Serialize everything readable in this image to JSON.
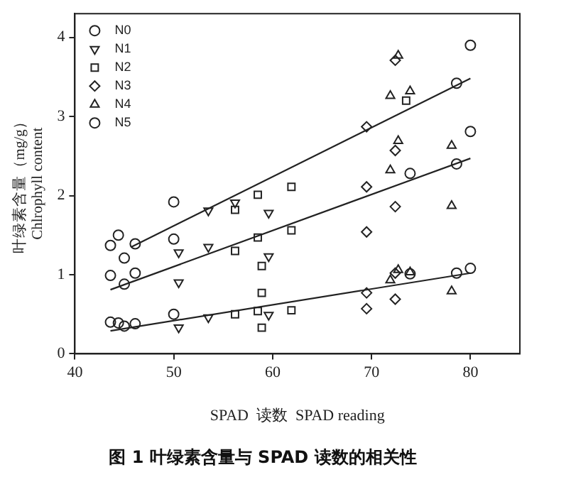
{
  "chart_data": {
    "type": "scatter",
    "title": "图 1 叶绿素含量与 SPAD 读数的相关性",
    "xlabel": "SPAD  读数  SPAD reading",
    "ylabel": "叶绿素含量（mg/g）\nChlrophyll content",
    "xlim": [
      40,
      85
    ],
    "ylim": [
      0,
      4.3
    ],
    "xticks": [
      40,
      50,
      60,
      70,
      80
    ],
    "yticks": [
      0,
      1,
      2,
      3,
      4
    ],
    "grid": false,
    "legend": "top left",
    "series": [
      {
        "name": "N0",
        "color": "#222222",
        "marker": "circle",
        "x": [
          43.6,
          44.4,
          43.6,
          46.1,
          46.1,
          45.0,
          45.0,
          50.0,
          50.0,
          43.6,
          44.4,
          46.1,
          45.0,
          50.0
        ],
        "values": [
          1.37,
          1.5,
          0.99,
          1.39,
          1.02,
          0.88,
          1.21,
          1.92,
          1.45,
          0.4,
          0.39,
          0.38,
          0.35,
          0.5
        ]
      },
      {
        "name": "N1",
        "color": "#222222",
        "marker": "triangle-down",
        "x": [
          53.5,
          50.5,
          50.5,
          53.5,
          59.6,
          59.6,
          50.5,
          53.5,
          59.6,
          56.2
        ],
        "values": [
          1.81,
          1.28,
          0.9,
          1.35,
          1.78,
          1.23,
          0.33,
          0.46,
          0.49,
          1.91
        ]
      },
      {
        "name": "N2",
        "color": "#222222",
        "marker": "square",
        "x": [
          56.2,
          58.5,
          61.9,
          56.2,
          58.5,
          58.9,
          61.9,
          58.9,
          58.9,
          56.2,
          58.5,
          61.9,
          73.5
        ],
        "values": [
          1.82,
          2.01,
          2.11,
          1.3,
          1.47,
          1.11,
          1.56,
          0.77,
          0.33,
          0.5,
          0.54,
          0.55,
          3.2
        ]
      },
      {
        "name": "N3",
        "color": "#222222",
        "marker": "diamond",
        "x": [
          72.4,
          69.5,
          72.4,
          69.5,
          72.4,
          69.5,
          69.5,
          69.5,
          72.4,
          72.4
        ],
        "values": [
          3.71,
          2.87,
          2.57,
          2.11,
          1.86,
          1.54,
          0.77,
          0.57,
          0.69,
          1.02
        ]
      },
      {
        "name": "N4",
        "color": "#222222",
        "marker": "triangle",
        "x": [
          72.7,
          71.9,
          73.9,
          72.7,
          71.9,
          78.1,
          78.1,
          71.9,
          73.9,
          78.1,
          72.7
        ],
        "values": [
          3.77,
          3.26,
          3.32,
          2.69,
          2.32,
          2.63,
          1.87,
          0.93,
          1.03,
          0.79,
          1.06
        ]
      },
      {
        "name": "N5",
        "color": "#222222",
        "marker": "circle",
        "x": [
          80.0,
          80.0,
          80.0,
          78.6,
          78.6,
          78.6,
          73.9,
          73.9
        ],
        "values": [
          3.9,
          2.81,
          1.08,
          3.42,
          2.4,
          1.02,
          2.28,
          1.01
        ]
      },
      {
        "type": "line",
        "color": "#222222",
        "marker": "none",
        "x": [
          45.7,
          80.0
        ],
        "values": [
          1.35,
          3.48
        ]
      },
      {
        "type": "line",
        "color": "#222222",
        "marker": "none",
        "x": [
          43.6,
          80.0
        ],
        "values": [
          0.81,
          2.47
        ]
      },
      {
        "type": "line",
        "color": "#222222",
        "marker": "none",
        "x": [
          43.6,
          80.0
        ],
        "values": [
          0.29,
          1.02
        ]
      }
    ]
  }
}
